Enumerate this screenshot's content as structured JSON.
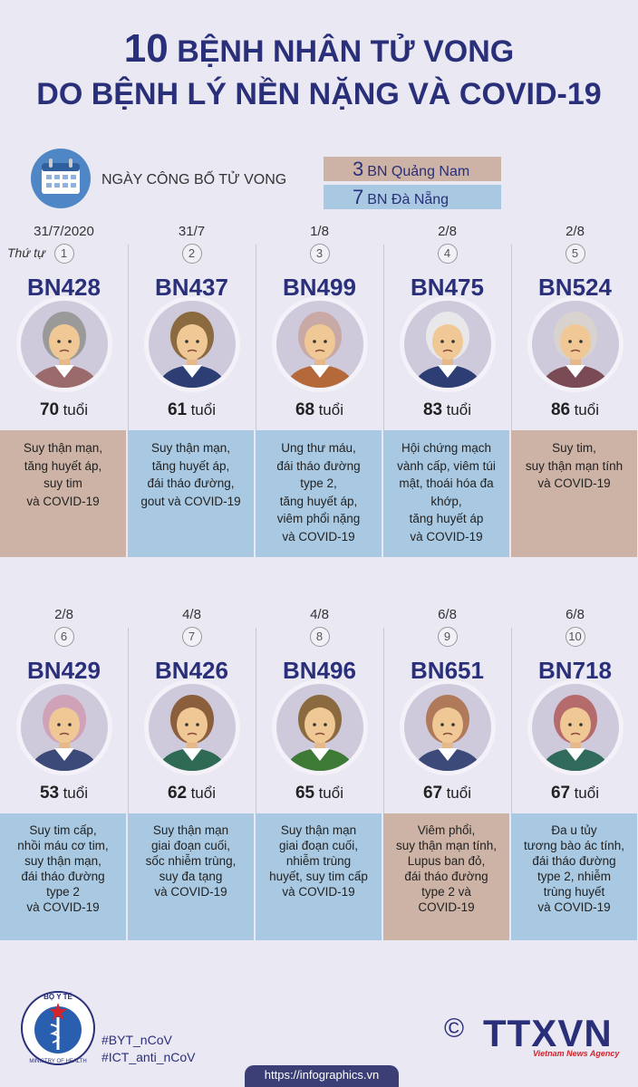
{
  "header": {
    "number": 10,
    "line1": "BỆNH NHÂN TỬ VONG",
    "line2": "DO BỆNH LÝ NỀN NẶNG VÀ COVID-19"
  },
  "legend": {
    "date_label": "NGÀY CÔNG BỐ TỬ VONG",
    "groups": [
      {
        "count": 3,
        "label": "BN Quảng Nam",
        "color": "#cdb3a5"
      },
      {
        "count": 7,
        "label": "BN Đà Nẵng",
        "color": "#a9c9e2"
      }
    ]
  },
  "order_label": "Thứ tự",
  "age_unit": "tuổi",
  "patients": [
    {
      "date": "31/7/2020",
      "order": 1,
      "id": "BN428",
      "age": 70,
      "group": 0,
      "conditions": [
        "Suy thận mạn,",
        "tăng huyết áp,",
        "suy tim",
        "và COVID-19"
      ]
    },
    {
      "date": "31/7",
      "order": 2,
      "id": "BN437",
      "age": 61,
      "group": 1,
      "conditions": [
        "Suy thận mạn,",
        "tăng huyết áp,",
        "đái tháo đường,",
        "gout và COVID-19"
      ]
    },
    {
      "date": "1/8",
      "order": 3,
      "id": "BN499",
      "age": 68,
      "group": 1,
      "conditions": [
        "Ung thư máu,",
        "đái tháo đường",
        "type 2,",
        "tăng huyết áp,",
        "viêm phổi nặng",
        "và COVID-19"
      ]
    },
    {
      "date": "2/8",
      "order": 4,
      "id": "BN475",
      "age": 83,
      "group": 1,
      "conditions": [
        "Hội chứng mạch",
        "vành cấp, viêm túi",
        "mật, thoái hóa đa",
        "khớp,",
        "tăng huyết áp",
        "và COVID-19"
      ]
    },
    {
      "date": "2/8",
      "order": 5,
      "id": "BN524",
      "age": 86,
      "group": 0,
      "conditions": [
        "Suy tim,",
        "suy thận mạn tính",
        "và COVID-19"
      ]
    },
    {
      "date": "2/8",
      "order": 6,
      "id": "BN429",
      "age": 53,
      "group": 1,
      "conditions": [
        "Suy tim cấp,",
        "nhồi máu cơ tim,",
        "suy thận mạn,",
        "đái tháo đường",
        "type 2",
        "và COVID-19"
      ]
    },
    {
      "date": "4/8",
      "order": 7,
      "id": "BN426",
      "age": 62,
      "group": 1,
      "conditions": [
        "Suy thận mạn",
        "giai đoạn cuối,",
        "sốc nhiễm trùng,",
        "suy đa tạng",
        "và COVID-19"
      ]
    },
    {
      "date": "4/8",
      "order": 8,
      "id": "BN496",
      "age": 65,
      "group": 1,
      "conditions": [
        "Suy thận mạn",
        "giai đoạn cuối,",
        "nhiễm trùng",
        "huyết, suy tim cấp",
        "và COVID-19"
      ]
    },
    {
      "date": "6/8",
      "order": 9,
      "id": "BN651",
      "age": 67,
      "group": 0,
      "conditions": [
        "Viêm phổi,",
        "suy thận mạn tính,",
        "Lupus ban đỏ,",
        "đái tháo đường",
        "type 2 và",
        "COVID-19"
      ]
    },
    {
      "date": "6/8",
      "order": 10,
      "id": "BN718",
      "age": 67,
      "group": 1,
      "conditions": [
        "Đa u tủy",
        "tương bào ác tính,",
        "đái tháo đường",
        "type 2, nhiễm",
        "trùng huyết",
        "và COVID-19"
      ]
    }
  ],
  "footer": {
    "logo_top": "BỘ Y TẾ",
    "logo_bottom": "MINISTRY OF HEALTH",
    "hashtags": [
      "#BYT_nCoV",
      "#ICT_anti_nCoV"
    ],
    "copyright": "©",
    "agency": "TTXVN",
    "agency_sub": "Vietnam News Agency",
    "url": "https://infographics.vn"
  }
}
